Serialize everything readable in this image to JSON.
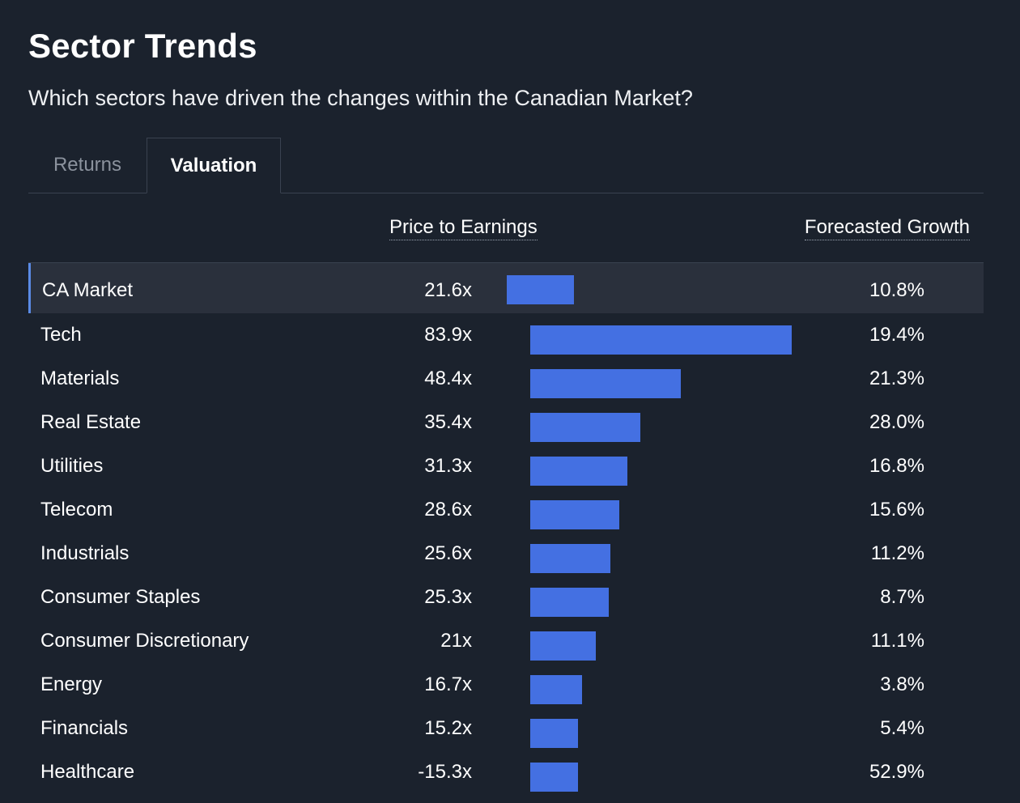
{
  "title": "Sector Trends",
  "subtitle": "Which sectors have driven the changes within the Canadian Market?",
  "tabs": [
    {
      "label": "Returns",
      "active": false
    },
    {
      "label": "Valuation",
      "active": true
    }
  ],
  "columns": {
    "pe": "Price to Earnings",
    "growth": "Forecasted Growth"
  },
  "colors": {
    "background": "#1b222d",
    "bar": "#4470e2",
    "highlight_row": "#2a303c",
    "highlight_accent": "#5a8be6"
  },
  "rows": [
    {
      "name": "CA Market",
      "pe": "21.6x",
      "pe_value": 21.6,
      "growth": "10.8%"
    },
    {
      "name": "Tech",
      "pe": "83.9x",
      "pe_value": 83.9,
      "growth": "19.4%"
    },
    {
      "name": "Materials",
      "pe": "48.4x",
      "pe_value": 48.4,
      "growth": "21.3%"
    },
    {
      "name": "Real Estate",
      "pe": "35.4x",
      "pe_value": 35.4,
      "growth": "28.0%"
    },
    {
      "name": "Utilities",
      "pe": "31.3x",
      "pe_value": 31.3,
      "growth": "16.8%"
    },
    {
      "name": "Telecom",
      "pe": "28.6x",
      "pe_value": 28.6,
      "growth": "15.6%"
    },
    {
      "name": "Industrials",
      "pe": "25.6x",
      "pe_value": 25.6,
      "growth": "11.2%"
    },
    {
      "name": "Consumer Staples",
      "pe": "25.3x",
      "pe_value": 25.3,
      "growth": "8.7%"
    },
    {
      "name": "Consumer Discretionary",
      "pe": "21x",
      "pe_value": 21,
      "growth": "11.1%"
    },
    {
      "name": "Energy",
      "pe": "16.7x",
      "pe_value": 16.7,
      "growth": "3.8%"
    },
    {
      "name": "Financials",
      "pe": "15.2x",
      "pe_value": 15.2,
      "growth": "5.4%"
    },
    {
      "name": "Healthcare",
      "pe": "-15.3x",
      "pe_value": -15.3,
      "growth": "52.9%"
    }
  ]
}
